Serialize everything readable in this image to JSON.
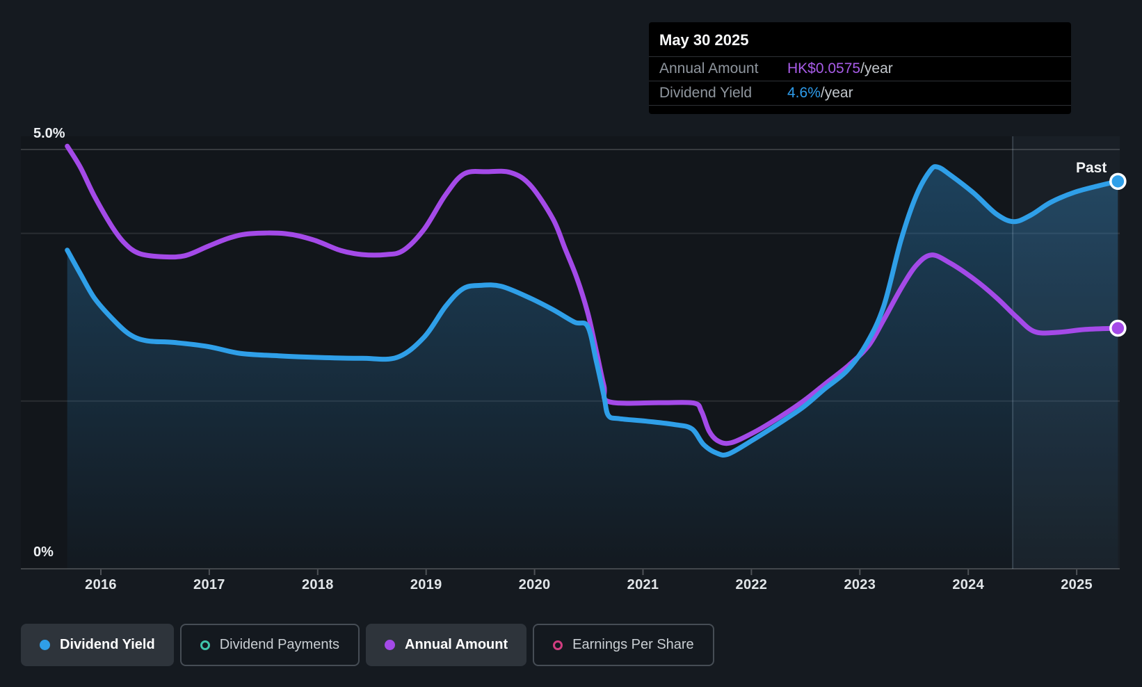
{
  "tooltip": {
    "date": "May 30 2025",
    "rows": [
      {
        "label": "Annual Amount",
        "value": "HK$0.0575",
        "unit": "/year",
        "value_color": "#a85ce8"
      },
      {
        "label": "Dividend Yield",
        "value": "4.6%",
        "unit": "/year",
        "value_color": "#2e9ceb"
      }
    ]
  },
  "axis": {
    "y_top": "5.0%",
    "y_zero": "0%",
    "years": [
      "2016",
      "2017",
      "2018",
      "2019",
      "2020",
      "2021",
      "2022",
      "2023",
      "2024",
      "2025"
    ],
    "past_label": "Past"
  },
  "legend": [
    {
      "label": "Dividend Yield",
      "marker": "filled",
      "color": "#2f9fe8",
      "active": true
    },
    {
      "label": "Dividend Payments",
      "marker": "ring",
      "color": "#40c4aa",
      "active": false
    },
    {
      "label": "Annual Amount",
      "marker": "filled",
      "color": "#a44ae8",
      "active": true
    },
    {
      "label": "Earnings Per Share",
      "marker": "ring",
      "color": "#d13d80",
      "active": false
    }
  ],
  "colors": {
    "background": "#151a20",
    "tooltip_bg": "#000000",
    "yield_line": "#2f9fe8",
    "amount_line": "#a44ae8",
    "fill_top": "rgba(44,130,190,0.40)",
    "fill_bottom": "rgba(44,130,190,0.03)",
    "gridline": "rgba(255,255,255,0.10)",
    "gridline_top": "rgba(255,255,255,0.16)",
    "past_overlay": "rgba(150,185,220,0.06)",
    "past_divider": "rgba(185,210,235,0.20)"
  },
  "chart_data": {
    "type": "line",
    "x_range": [
      2015.6,
      2025.45
    ],
    "y_axis": {
      "unit": "%",
      "min": 0,
      "max": 5,
      "gridlines_pct": [
        5,
        4,
        2
      ]
    },
    "x_ticks": [
      2016,
      2017,
      2018,
      2019,
      2020,
      2021,
      2022,
      2023,
      2024,
      2025
    ],
    "past_region_start": 2024.41,
    "series": [
      {
        "name": "Dividend Yield",
        "unit": "%",
        "color": "#2f9fe8",
        "points": [
          [
            2015.69,
            3.8
          ],
          [
            2015.81,
            3.52
          ],
          [
            2015.94,
            3.23
          ],
          [
            2016.1,
            2.99
          ],
          [
            2016.26,
            2.8
          ],
          [
            2016.42,
            2.72
          ],
          [
            2016.67,
            2.7
          ],
          [
            2016.99,
            2.65
          ],
          [
            2017.28,
            2.57
          ],
          [
            2017.64,
            2.54
          ],
          [
            2018.02,
            2.52
          ],
          [
            2018.41,
            2.51
          ],
          [
            2018.73,
            2.52
          ],
          [
            2018.98,
            2.76
          ],
          [
            2019.18,
            3.13
          ],
          [
            2019.34,
            3.34
          ],
          [
            2019.5,
            3.38
          ],
          [
            2019.69,
            3.37
          ],
          [
            2019.94,
            3.24
          ],
          [
            2020.17,
            3.09
          ],
          [
            2020.37,
            2.94
          ],
          [
            2020.49,
            2.89
          ],
          [
            2020.57,
            2.47
          ],
          [
            2020.64,
            2.06
          ],
          [
            2020.68,
            1.83
          ],
          [
            2020.78,
            1.79
          ],
          [
            2021.03,
            1.76
          ],
          [
            2021.29,
            1.72
          ],
          [
            2021.45,
            1.67
          ],
          [
            2021.56,
            1.48
          ],
          [
            2021.68,
            1.38
          ],
          [
            2021.79,
            1.37
          ],
          [
            2022.03,
            1.55
          ],
          [
            2022.25,
            1.73
          ],
          [
            2022.48,
            1.93
          ],
          [
            2022.67,
            2.14
          ],
          [
            2022.88,
            2.36
          ],
          [
            2023.06,
            2.68
          ],
          [
            2023.22,
            3.13
          ],
          [
            2023.38,
            3.92
          ],
          [
            2023.52,
            4.45
          ],
          [
            2023.65,
            4.75
          ],
          [
            2023.72,
            4.79
          ],
          [
            2023.83,
            4.7
          ],
          [
            2024.05,
            4.48
          ],
          [
            2024.26,
            4.23
          ],
          [
            2024.42,
            4.14
          ],
          [
            2024.58,
            4.22
          ],
          [
            2024.76,
            4.37
          ],
          [
            2024.98,
            4.49
          ],
          [
            2025.21,
            4.57
          ],
          [
            2025.38,
            4.62
          ]
        ]
      },
      {
        "name": "Annual Amount",
        "unit": "HK$/year",
        "color": "#a44ae8",
        "points": [
          [
            2015.69,
            0.101
          ],
          [
            2015.81,
            0.096
          ],
          [
            2015.94,
            0.0891
          ],
          [
            2016.1,
            0.0819
          ],
          [
            2016.22,
            0.0778
          ],
          [
            2016.35,
            0.0754
          ],
          [
            2016.55,
            0.0746
          ],
          [
            2016.77,
            0.0748
          ],
          [
            2016.99,
            0.0771
          ],
          [
            2017.19,
            0.0791
          ],
          [
            2017.38,
            0.0801
          ],
          [
            2017.7,
            0.0801
          ],
          [
            2017.96,
            0.0786
          ],
          [
            2018.21,
            0.0761
          ],
          [
            2018.41,
            0.0751
          ],
          [
            2018.63,
            0.0751
          ],
          [
            2018.79,
            0.0761
          ],
          [
            2018.98,
            0.0811
          ],
          [
            2019.18,
            0.0894
          ],
          [
            2019.35,
            0.0944
          ],
          [
            2019.56,
            0.0949
          ],
          [
            2019.78,
            0.0947
          ],
          [
            2019.96,
            0.0917
          ],
          [
            2020.17,
            0.0836
          ],
          [
            2020.28,
            0.0766
          ],
          [
            2020.39,
            0.0695
          ],
          [
            2020.49,
            0.0612
          ],
          [
            2020.57,
            0.052
          ],
          [
            2020.64,
            0.0437
          ],
          [
            2020.69,
            0.0399
          ],
          [
            2021.16,
            0.0397
          ],
          [
            2021.47,
            0.0396
          ],
          [
            2021.54,
            0.0376
          ],
          [
            2021.61,
            0.0329
          ],
          [
            2021.69,
            0.0306
          ],
          [
            2021.81,
            0.0301
          ],
          [
            2022.03,
            0.0327
          ],
          [
            2022.25,
            0.0361
          ],
          [
            2022.48,
            0.0401
          ],
          [
            2022.69,
            0.0444
          ],
          [
            2022.9,
            0.0487
          ],
          [
            2023.08,
            0.0533
          ],
          [
            2023.22,
            0.0595
          ],
          [
            2023.38,
            0.067
          ],
          [
            2023.52,
            0.0725
          ],
          [
            2023.66,
            0.075
          ],
          [
            2023.83,
            0.0731
          ],
          [
            2024.05,
            0.0693
          ],
          [
            2024.26,
            0.0648
          ],
          [
            2024.44,
            0.0603
          ],
          [
            2024.61,
            0.0567
          ],
          [
            2024.82,
            0.0565
          ],
          [
            2025.08,
            0.0572
          ],
          [
            2025.38,
            0.0575
          ]
        ]
      }
    ]
  }
}
